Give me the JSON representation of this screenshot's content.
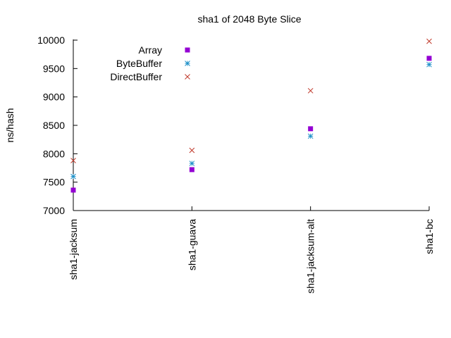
{
  "chart_data": {
    "type": "scatter",
    "title": "sha1 of 2048 Byte Slice",
    "xlabel": "",
    "ylabel": "ns/hash",
    "categories": [
      "sha1-jacksum",
      "sha1-guava",
      "sha1-jacksum-alt",
      "sha1-bc"
    ],
    "ylim": [
      7000,
      10000
    ],
    "yticks": [
      7000,
      7500,
      8000,
      8500,
      9000,
      9500,
      10000
    ],
    "grid": false,
    "legend_position": "top-left",
    "series": [
      {
        "name": "Array",
        "marker": "square",
        "color": "#9400d3",
        "values": [
          7360,
          7720,
          8440,
          9680
        ]
      },
      {
        "name": "ByteBuffer",
        "marker": "asterisk",
        "color": "#1e90c8",
        "values": [
          7600,
          7830,
          8310,
          9570
        ]
      },
      {
        "name": "DirectBuffer",
        "marker": "x",
        "color": "#c0392b",
        "values": [
          7880,
          8060,
          9110,
          9980
        ]
      }
    ]
  }
}
